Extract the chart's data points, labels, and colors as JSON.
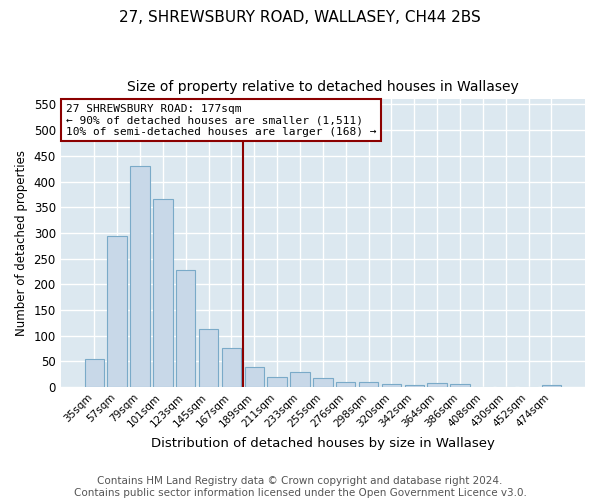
{
  "title": "27, SHREWSBURY ROAD, WALLASEY, CH44 2BS",
  "subtitle": "Size of property relative to detached houses in Wallasey",
  "xlabel": "Distribution of detached houses by size in Wallasey",
  "ylabel": "Number of detached properties",
  "categories": [
    "35sqm",
    "57sqm",
    "79sqm",
    "101sqm",
    "123sqm",
    "145sqm",
    "167sqm",
    "189sqm",
    "211sqm",
    "233sqm",
    "255sqm",
    "276sqm",
    "298sqm",
    "320sqm",
    "342sqm",
    "364sqm",
    "386sqm",
    "408sqm",
    "430sqm",
    "452sqm",
    "474sqm"
  ],
  "values": [
    55,
    293,
    430,
    365,
    228,
    113,
    75,
    38,
    20,
    29,
    17,
    10,
    10,
    5,
    4,
    8,
    5,
    0,
    0,
    0,
    4
  ],
  "bar_color": "#c8d8e8",
  "bar_edge_color": "#7aaac8",
  "vline_x_index": 6.5,
  "vline_color": "#8b0000",
  "annotation_text": "27 SHREWSBURY ROAD: 177sqm\n← 90% of detached houses are smaller (1,511)\n10% of semi-detached houses are larger (168) →",
  "annotation_box_color": "#ffffff",
  "annotation_box_edge_color": "#8b0000",
  "ylim": [
    0,
    560
  ],
  "yticks": [
    0,
    50,
    100,
    150,
    200,
    250,
    300,
    350,
    400,
    450,
    500,
    550
  ],
  "plot_bg_color": "#dce8f0",
  "fig_bg_color": "#ffffff",
  "grid_color": "#ffffff",
  "title_fontsize": 11,
  "subtitle_fontsize": 10,
  "footer_text": "Contains HM Land Registry data © Crown copyright and database right 2024.\nContains public sector information licensed under the Open Government Licence v3.0.",
  "footer_fontsize": 7.5
}
